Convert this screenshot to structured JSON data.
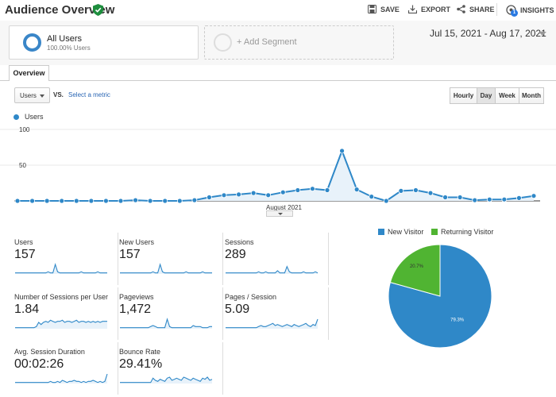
{
  "header": {
    "title": "Audience Overview",
    "save_label": "SAVE",
    "export_label": "EXPORT",
    "share_label": "SHARE",
    "insights_label": "INSIGHTS",
    "insights_badge": "1"
  },
  "segments": {
    "active_name": "All Users",
    "active_pct": "100.00% Users",
    "add_label": "+ Add Segment"
  },
  "date_range": "Jul 15, 2021 - Aug 17, 2021",
  "tabs": {
    "overview": "Overview"
  },
  "controls": {
    "metric": "Users",
    "vs": "VS.",
    "select_metric": "Select a metric",
    "granularity": [
      "Hourly",
      "Day",
      "Week",
      "Month"
    ],
    "granularity_active": "Day"
  },
  "chart_data": {
    "type": "line",
    "series": [
      {
        "name": "Users",
        "values": [
          0,
          0,
          0,
          0,
          0,
          0,
          0,
          0,
          1,
          0,
          0,
          0,
          1,
          5,
          8,
          9,
          11,
          8,
          12,
          15,
          17,
          15,
          70,
          16,
          6,
          0,
          14,
          15,
          11,
          5,
          5,
          1,
          2,
          2,
          4,
          7
        ]
      }
    ],
    "x_label": "August 2021",
    "y_ticks": [
      "100",
      "50"
    ],
    "ylim": [
      0,
      100
    ],
    "color": "#2f88c8"
  },
  "metrics": [
    {
      "label": "Users",
      "value": "157"
    },
    {
      "label": "New Users",
      "value": "157"
    },
    {
      "label": "Sessions",
      "value": "289"
    },
    {
      "label": "Number of Sessions per User",
      "value": "1.84"
    },
    {
      "label": "Pageviews",
      "value": "1,472"
    },
    {
      "label": "Pages / Session",
      "value": "5.09"
    },
    {
      "label": "Avg. Session Duration",
      "value": "00:02:26"
    },
    {
      "label": "Bounce Rate",
      "value": "29.41%"
    }
  ],
  "pie_data": {
    "type": "pie",
    "slices": [
      {
        "name": "New Visitor",
        "value": 79.3,
        "label": "79.3%",
        "color": "#2f88c8"
      },
      {
        "name": "Returning Visitor",
        "value": 20.7,
        "label": "20.7%",
        "color": "#50b432"
      }
    ]
  }
}
